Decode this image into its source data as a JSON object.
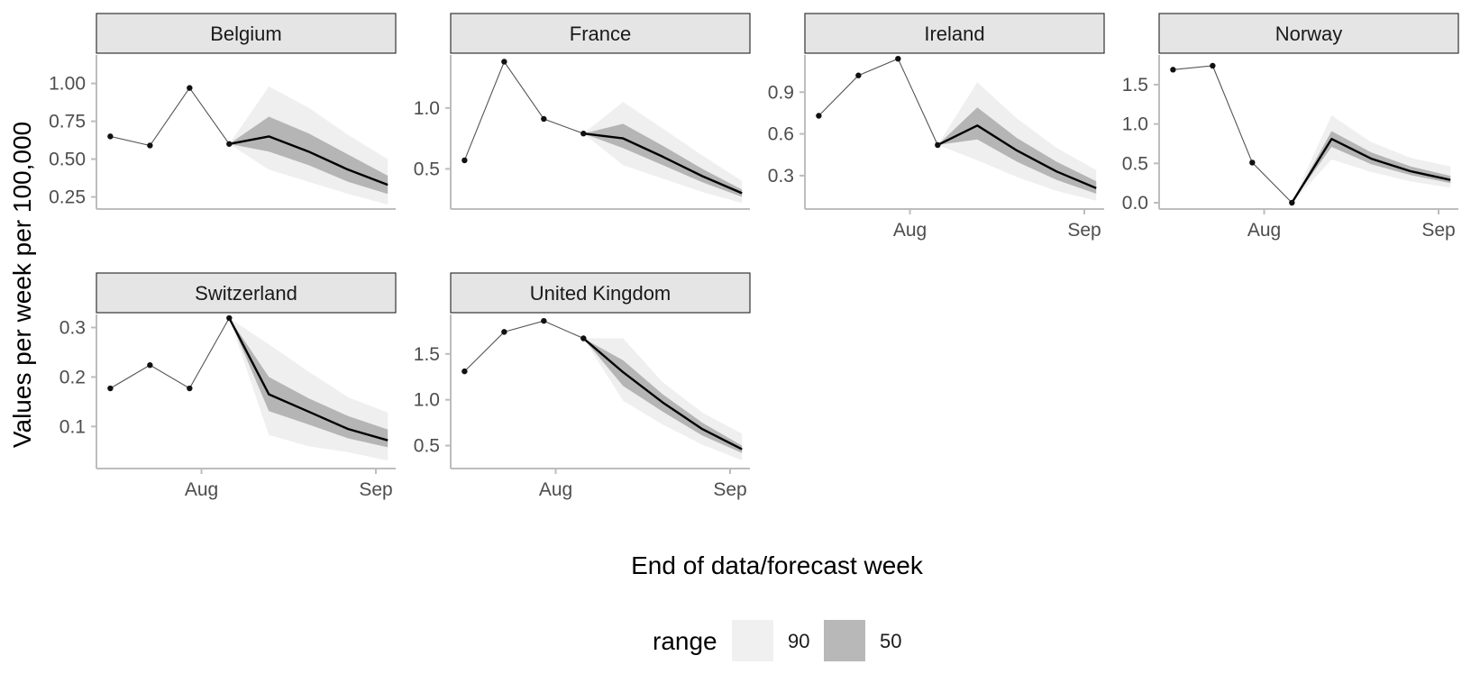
{
  "chart_data": {
    "type": "line",
    "layout": "facet-grid",
    "xlabel": "End of data/forecast week",
    "ylabel": "Values per week per 100,000",
    "x_ticks": [
      "Aug",
      "Sep"
    ],
    "legend": {
      "title": "range",
      "position": "bottom",
      "entries": [
        {
          "label": "90",
          "color": "#f0f0f0"
        },
        {
          "label": "50",
          "color": "#b8b8b8"
        }
      ]
    },
    "colors": {
      "band90": "#efefef",
      "band50": "#b5b5b5",
      "line": "#000000",
      "observed_line": "#555555",
      "strip": "#e5e5e5",
      "axis": "#bdbdbd"
    },
    "facets": [
      {
        "name": "Belgium",
        "ylim": [
          0.17,
          1.2
        ],
        "yticks": [
          0.25,
          0.5,
          0.75,
          1.0
        ],
        "ytick_labels": [
          "0.25",
          "0.50",
          "0.75",
          "1.00"
        ],
        "observed": {
          "x": [
            -7,
            -6,
            -5,
            -4
          ],
          "y": [
            0.65,
            0.59,
            0.97,
            0.6
          ]
        },
        "forecast": {
          "x": [
            -4,
            -3,
            -2,
            -1,
            0
          ],
          "median": [
            0.6,
            0.65,
            0.55,
            0.43,
            0.33
          ],
          "lower50": [
            0.6,
            0.55,
            0.46,
            0.35,
            0.27
          ],
          "upper50": [
            0.6,
            0.78,
            0.67,
            0.53,
            0.39
          ],
          "lower90": [
            0.6,
            0.43,
            0.35,
            0.27,
            0.2
          ],
          "upper90": [
            0.6,
            0.98,
            0.84,
            0.66,
            0.5
          ]
        }
      },
      {
        "name": "France",
        "ylim": [
          0.17,
          1.45
        ],
        "yticks": [
          0.5,
          1.0
        ],
        "ytick_labels": [
          "0.5",
          "1.0"
        ],
        "observed": {
          "x": [
            -7,
            -6,
            -5,
            -4
          ],
          "y": [
            0.57,
            1.38,
            0.91,
            0.79
          ]
        },
        "forecast": {
          "x": [
            -4,
            -3,
            -2,
            -1,
            0
          ],
          "median": [
            0.79,
            0.75,
            0.6,
            0.44,
            0.3
          ],
          "lower50": [
            0.79,
            0.67,
            0.53,
            0.39,
            0.27
          ],
          "upper50": [
            0.79,
            0.87,
            0.69,
            0.5,
            0.33
          ],
          "lower90": [
            0.79,
            0.53,
            0.42,
            0.31,
            0.22
          ],
          "upper90": [
            0.79,
            1.05,
            0.83,
            0.61,
            0.4
          ]
        }
      },
      {
        "name": "Ireland",
        "ylim": [
          0.06,
          1.18
        ],
        "yticks": [
          0.3,
          0.6,
          0.9
        ],
        "ytick_labels": [
          "0.3",
          "0.6",
          "0.9"
        ],
        "observed": {
          "x": [
            -7,
            -6,
            -5,
            -4
          ],
          "y": [
            0.73,
            1.02,
            1.14,
            0.52
          ]
        },
        "forecast": {
          "x": [
            -4,
            -3,
            -2,
            -1,
            0
          ],
          "median": [
            0.52,
            0.66,
            0.48,
            0.33,
            0.21
          ],
          "lower50": [
            0.52,
            0.56,
            0.4,
            0.27,
            0.17
          ],
          "upper50": [
            0.52,
            0.79,
            0.57,
            0.4,
            0.26
          ],
          "lower90": [
            0.52,
            0.41,
            0.29,
            0.19,
            0.12
          ],
          "upper90": [
            0.52,
            0.97,
            0.71,
            0.5,
            0.34
          ]
        }
      },
      {
        "name": "Norway",
        "ylim": [
          -0.08,
          1.9
        ],
        "yticks": [
          0.0,
          0.5,
          1.0,
          1.5
        ],
        "ytick_labels": [
          "0.0",
          "0.5",
          "1.0",
          "1.5"
        ],
        "observed": {
          "x": [
            -7,
            -6,
            -5,
            -4
          ],
          "y": [
            1.69,
            1.74,
            0.51,
            0.0
          ]
        },
        "forecast": {
          "x": [
            -4,
            -3,
            -2,
            -1,
            0
          ],
          "median": [
            0.0,
            0.81,
            0.56,
            0.4,
            0.29
          ],
          "lower50": [
            0.0,
            0.71,
            0.49,
            0.35,
            0.25
          ],
          "upper50": [
            0.0,
            0.91,
            0.64,
            0.46,
            0.34
          ],
          "lower90": [
            0.0,
            0.55,
            0.39,
            0.27,
            0.19
          ],
          "upper90": [
            0.0,
            1.11,
            0.77,
            0.57,
            0.46
          ]
        }
      },
      {
        "name": "Switzerland",
        "ylim": [
          0.015,
          0.33
        ],
        "yticks": [
          0.1,
          0.2,
          0.3
        ],
        "ytick_labels": [
          "0.1",
          "0.2",
          "0.3"
        ],
        "observed": {
          "x": [
            -7,
            -6,
            -5,
            -4
          ],
          "y": [
            0.177,
            0.224,
            0.177,
            0.319
          ]
        },
        "forecast": {
          "x": [
            -4,
            -3,
            -2,
            -1,
            0
          ],
          "median": [
            0.319,
            0.165,
            0.13,
            0.095,
            0.072
          ],
          "lower50": [
            0.319,
            0.131,
            0.104,
            0.076,
            0.058
          ],
          "upper50": [
            0.319,
            0.2,
            0.157,
            0.121,
            0.094
          ],
          "lower90": [
            0.319,
            0.083,
            0.06,
            0.048,
            0.031
          ],
          "upper90": [
            0.319,
            0.266,
            0.211,
            0.159,
            0.128
          ]
        }
      },
      {
        "name": "United Kingdom",
        "ylim": [
          0.25,
          1.95
        ],
        "yticks": [
          0.5,
          1.0,
          1.5
        ],
        "ytick_labels": [
          "0.5",
          "1.0",
          "1.5"
        ],
        "observed": {
          "x": [
            -7,
            -6,
            -5,
            -4
          ],
          "y": [
            1.31,
            1.74,
            1.86,
            1.67
          ]
        },
        "forecast": {
          "x": [
            -4,
            -3,
            -2,
            -1,
            0
          ],
          "median": [
            1.67,
            1.3,
            0.97,
            0.68,
            0.46
          ],
          "lower50": [
            1.67,
            1.15,
            0.87,
            0.61,
            0.42
          ],
          "upper50": [
            1.67,
            1.43,
            1.06,
            0.75,
            0.5
          ],
          "lower90": [
            1.67,
            0.99,
            0.73,
            0.51,
            0.34
          ],
          "upper90": [
            1.67,
            1.67,
            1.19,
            0.86,
            0.63
          ]
        }
      }
    ]
  }
}
